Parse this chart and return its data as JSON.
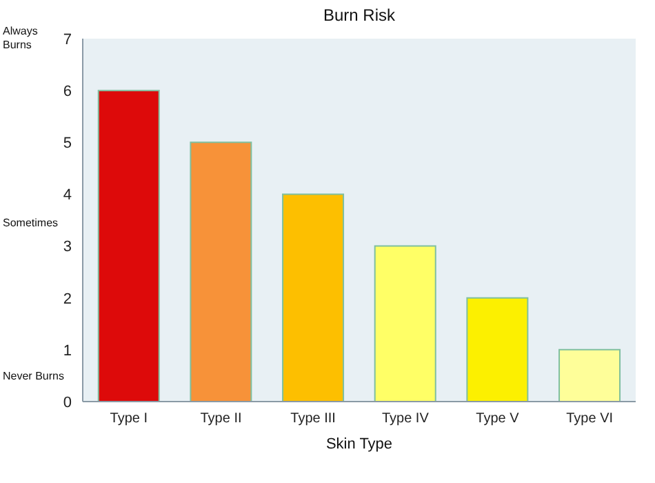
{
  "chart_data": {
    "type": "bar",
    "title": "Burn Risk",
    "xlabel": "Skin Type",
    "categories": [
      "Type I",
      "Type II",
      "Type III",
      "Type IV",
      "Type V",
      "Type VI"
    ],
    "values": [
      6,
      5,
      4,
      3,
      2,
      1
    ],
    "colors": [
      "#dd0a0a",
      "#f79239",
      "#fdbf00",
      "#ffff66",
      "#fcf000",
      "#fefe99"
    ],
    "ylim": [
      0,
      7
    ],
    "yticks": [
      0,
      1,
      2,
      3,
      4,
      5,
      6,
      7
    ],
    "annotations": [
      "Always Burns",
      "Sometimes",
      "Never Burns"
    ]
  }
}
